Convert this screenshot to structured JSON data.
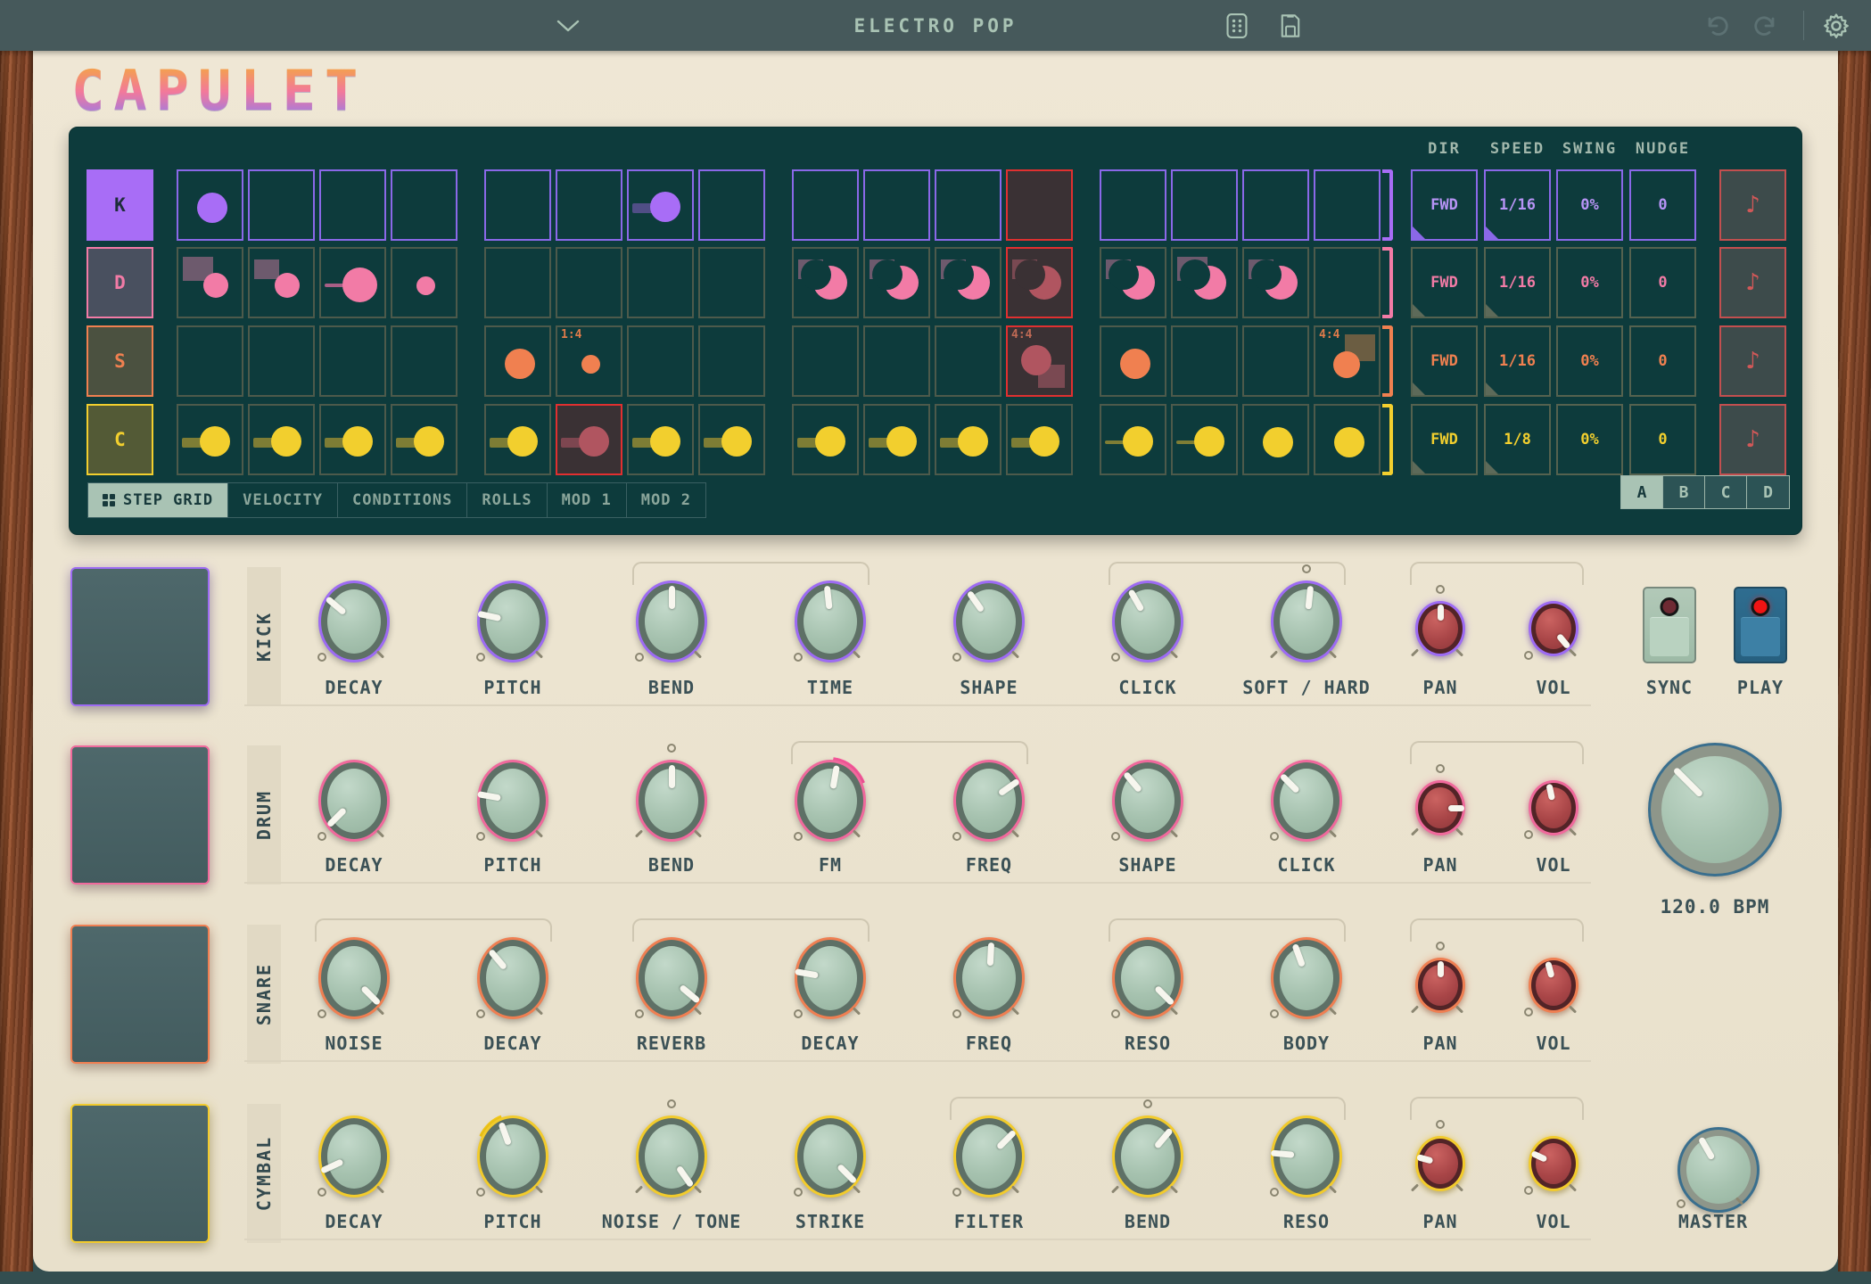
{
  "window": {
    "title": "ELECTRO POP"
  },
  "logo": "CAPULET",
  "topbar": {
    "icons": [
      "chevron-down",
      "dice",
      "save",
      "undo",
      "redo",
      "settings"
    ]
  },
  "sequencer": {
    "headers": [
      "DIR",
      "SPEED",
      "SWING",
      "NUDGE"
    ],
    "tabs": [
      {
        "label": "STEP GRID",
        "active": true
      },
      {
        "label": "VELOCITY",
        "active": false
      },
      {
        "label": "CONDITIONS",
        "active": false
      },
      {
        "label": "ROLLS",
        "active": false
      },
      {
        "label": "MOD 1",
        "active": false
      },
      {
        "label": "MOD 2",
        "active": false
      }
    ],
    "pages": [
      {
        "label": "A",
        "active": true
      },
      {
        "label": "B",
        "active": false
      },
      {
        "label": "C",
        "active": false
      },
      {
        "label": "D",
        "active": false
      }
    ],
    "tracks": [
      {
        "key": "K",
        "accent": "#a86df6",
        "selected": true,
        "dir": "FWD",
        "speed": "1/16",
        "swing": "0%",
        "nudge": "0",
        "steps": [
          {
            "s": "c"
          },
          null,
          null,
          null,
          null,
          null,
          {
            "s": "c",
            "bar": "w"
          },
          null,
          null,
          null,
          null,
          {
            "ph": true
          },
          null,
          null,
          null,
          null
        ]
      },
      {
        "key": "D",
        "accent": "#f27ba6",
        "selected": false,
        "dir": "FWD",
        "speed": "1/16",
        "swing": "0%",
        "nudge": "0",
        "steps": [
          {
            "s": "c",
            "rect": "tlb"
          },
          {
            "s": "c",
            "rect": "tl"
          },
          {
            "s": "c",
            "big": true,
            "bar": "l"
          },
          {
            "s": "c",
            "sz": "sm"
          },
          null,
          null,
          null,
          null,
          {
            "s": "m",
            "rect": "tl"
          },
          {
            "s": "m",
            "rect": "tl"
          },
          {
            "s": "m",
            "rect": "tl"
          },
          {
            "s": "m",
            "rect": "tl",
            "ph": true
          },
          {
            "s": "m",
            "rect": "tl"
          },
          {
            "s": "m",
            "rect": "tlb"
          },
          {
            "s": "m",
            "rect": "tl"
          },
          null
        ]
      },
      {
        "key": "S",
        "accent": "#f08050",
        "selected": false,
        "dir": "FWD",
        "speed": "1/16",
        "swing": "0%",
        "nudge": "0",
        "steps": [
          null,
          null,
          null,
          null,
          {
            "s": "c"
          },
          {
            "s": "c",
            "sz": "sm",
            "lbl": "1:4"
          },
          null,
          null,
          null,
          null,
          null,
          {
            "s": "c",
            "rect": "br",
            "lbl": "4:4",
            "ph": true
          },
          {
            "s": "c"
          },
          null,
          null,
          {
            "s": "c",
            "rect": "tr",
            "lbl": "4:4"
          }
        ]
      },
      {
        "key": "C",
        "accent": "#f2cf2e",
        "selected": false,
        "dir": "FWD",
        "speed": "1/8",
        "swing": "0%",
        "nudge": "0",
        "steps": [
          {
            "s": "c",
            "bar": "w"
          },
          {
            "s": "c",
            "bar": "w"
          },
          {
            "s": "c",
            "bar": "w"
          },
          {
            "s": "c",
            "bar": "w"
          },
          {
            "s": "c",
            "bar": "w"
          },
          {
            "s": "c",
            "bar": "w",
            "ph": true
          },
          {
            "s": "c",
            "bar": "w"
          },
          {
            "s": "c",
            "bar": "w"
          },
          {
            "s": "c",
            "bar": "w"
          },
          {
            "s": "c",
            "bar": "w"
          },
          {
            "s": "c",
            "bar": "w"
          },
          {
            "s": "c",
            "bar": "w"
          },
          {
            "s": "c",
            "bar": "l"
          },
          {
            "s": "c",
            "bar": "l"
          },
          {
            "s": "c"
          },
          {
            "s": "c"
          }
        ]
      }
    ]
  },
  "mixer": {
    "rows": [
      {
        "name": "KICK",
        "accent": "#9d6bf3",
        "knobs": [
          {
            "label": "DECAY",
            "angle": -50
          },
          {
            "label": "PITCH",
            "angle": -78
          },
          {
            "label": "BEND",
            "angle": 0
          },
          {
            "label": "TIME",
            "angle": -6
          },
          {
            "label": "SHAPE",
            "angle": -35
          },
          {
            "label": "CLICK",
            "angle": -30
          },
          {
            "label": "SOFT / HARD",
            "angle": 6,
            "marker": "top"
          },
          {
            "label": "PAN",
            "angle": 0,
            "small": true,
            "marker": "top"
          },
          {
            "label": "VOL",
            "angle": 140,
            "small": true
          }
        ],
        "groups": [
          [
            2,
            3
          ],
          [
            5,
            6
          ],
          [
            7,
            8
          ]
        ]
      },
      {
        "name": "DRUM",
        "accent": "#f0699c",
        "knobs": [
          {
            "label": "DECAY",
            "angle": -135
          },
          {
            "label": "PITCH",
            "angle": -80
          },
          {
            "label": "BEND",
            "angle": 0,
            "marker": "top"
          },
          {
            "label": "FM",
            "angle": 10,
            "arc": [
              4,
              62
            ],
            "arc_color": "#f7579b"
          },
          {
            "label": "FREQ",
            "angle": 55
          },
          {
            "label": "SHAPE",
            "angle": -40
          },
          {
            "label": "CLICK",
            "angle": -45
          },
          {
            "label": "PAN",
            "angle": 90,
            "small": true,
            "marker": "top"
          },
          {
            "label": "VOL",
            "angle": -12,
            "small": true
          }
        ],
        "groups": [
          [
            3,
            4
          ],
          [
            7,
            8
          ]
        ]
      },
      {
        "name": "SNARE",
        "accent": "#ef7f52",
        "knobs": [
          {
            "label": "NOISE",
            "angle": 135
          },
          {
            "label": "DECAY",
            "angle": -40
          },
          {
            "label": "REVERB",
            "angle": 130
          },
          {
            "label": "DECAY",
            "angle": -80
          },
          {
            "label": "FREQ",
            "angle": 3
          },
          {
            "label": "RESO",
            "angle": 135
          },
          {
            "label": "BODY",
            "angle": -20
          },
          {
            "label": "PAN",
            "angle": 0,
            "small": true,
            "marker": "top"
          },
          {
            "label": "VOL",
            "angle": -15,
            "small": true
          }
        ],
        "groups": [
          [
            0,
            1
          ],
          [
            2,
            3
          ],
          [
            5,
            6
          ],
          [
            7,
            8
          ]
        ]
      },
      {
        "name": "CYMBAL",
        "accent": "#f2cb2c",
        "knobs": [
          {
            "label": "DECAY",
            "angle": -115
          },
          {
            "label": "PITCH",
            "angle": -20,
            "arc": [
              -58,
              -16
            ],
            "arc_color": "#f5c918"
          },
          {
            "label": "NOISE / TONE",
            "angle": 145,
            "marker": "top"
          },
          {
            "label": "STRIKE",
            "angle": 135
          },
          {
            "label": "FILTER",
            "angle": 45
          },
          {
            "label": "BEND",
            "angle": 40,
            "marker": "top"
          },
          {
            "label": "RESO",
            "angle": -85
          },
          {
            "label": "PAN",
            "angle": -75,
            "small": true,
            "marker": "top"
          },
          {
            "label": "VOL",
            "angle": -65,
            "small": true
          }
        ],
        "groups": [
          [
            4,
            6
          ],
          [
            7,
            8
          ]
        ]
      }
    ]
  },
  "transport": {
    "sync_label": "SYNC",
    "play_label": "PLAY",
    "bpm_value": "120.0 BPM",
    "bpm_angle": -45,
    "master_label": "MASTER",
    "master_angle": -30
  },
  "colors": {
    "panel": "#0d3b3c",
    "cream": "#ece4d1",
    "playhead_border": "#e03030",
    "playhead_bg": "#3a3134",
    "dim_cell_border": "#4d5a4b",
    "olive_bar": "#7e7d35",
    "mauve_rect": "#6d5a6d",
    "brown_rect": "#6b5d42"
  }
}
